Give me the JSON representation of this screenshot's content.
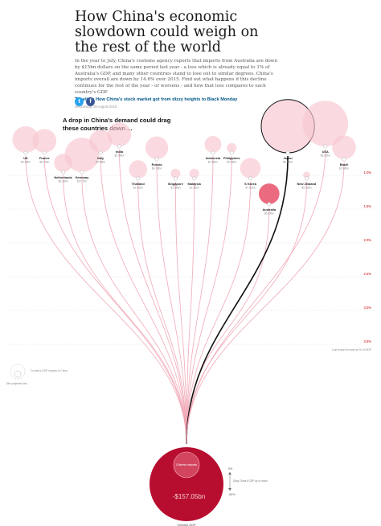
{
  "article": {
    "title": "How China's economic slowdown could weigh on the rest of the world",
    "standfirst": "In the year to July, China's customs agency reports that imports from Australia are down by $15bn dollars on the same period last year - a loss which is already equal to 1% of Australia's GDP, and many other countries stand to lose out to similar degrees. China's imports overall are down by 14.6% over 2015. Find out what happens if this decline continues for the rest of the year - or worsens - and how that loss compares to each country's GDP",
    "timeline_link": "Timeline: How China's stock market got from dizzy heights to Black Monday",
    "dateline": "Wednesday 26 August 2015",
    "social": {
      "twitter": "t",
      "facebook": "f"
    }
  },
  "chart_data": {
    "type": "flow-bubble",
    "headline": "A drop in China's demand could drag these countries down ...",
    "colors": {
      "bubble_fill": "#f7c6cf",
      "bubble_fill_strong": "#e8506a",
      "china_fill": "#b70d2e",
      "highlight_line": "#111111",
      "flow_line": "#f0a4b3",
      "scale_label": "#c70000"
    },
    "highlight": "Japan",
    "countries": [
      {
        "name": "UK",
        "value": "$5.98bn",
        "loss_pct": 0.2,
        "bubble": 1.5
      },
      {
        "name": "France",
        "value": "$5.14bn",
        "loss_pct": 0.2,
        "bubble": 1.2
      },
      {
        "name": "Netherlands",
        "value": "$3.78bn",
        "loss_pct": 0.5,
        "bubble": 0.7
      },
      {
        "name": "Germany",
        "value": "$17.7bn",
        "loss_pct": 0.5,
        "bubble": 2.5
      },
      {
        "name": "Italy",
        "value": "$3.58bn",
        "loss_pct": 0.2,
        "bubble": 1.1
      },
      {
        "name": "India",
        "value": "$2.98bn",
        "loss_pct": 0.1,
        "bubble": 1.2
      },
      {
        "name": "Thailand",
        "value": "$2.92bn",
        "loss_pct": 0.6,
        "bubble": 0.7
      },
      {
        "name": "Russia",
        "value": "$4.78bn",
        "loss_pct": 0.3,
        "bubble": 1.1
      },
      {
        "name": "Singapore",
        "value": "$1.98bn",
        "loss_pct": 0.6,
        "bubble": 0.2
      },
      {
        "name": "Malaysia",
        "value": "$1.98bn",
        "loss_pct": 0.6,
        "bubble": 0.2
      },
      {
        "name": "Indonesia",
        "value": "$1.68bn",
        "loss_pct": 0.2,
        "bubble": 0.6
      },
      {
        "name": "Philippines",
        "value": "$0.68bn",
        "loss_pct": 0.2,
        "bubble": 0.2
      },
      {
        "name": "S Korea",
        "value": "$7.52bn",
        "loss_pct": 0.6,
        "bubble": 0.9
      },
      {
        "name": "Australia",
        "value": "$6.93bn",
        "loss_pct": 1.0,
        "bubble": 0.9
      },
      {
        "name": "Japan",
        "value": "$8.73bn",
        "loss_pct": 0.2,
        "bubble": 6.0
      },
      {
        "name": "New Zealand",
        "value": "$0.93bn",
        "loss_pct": 0.6,
        "bubble": 0.1
      },
      {
        "name": "USA",
        "value": "$6.03bn",
        "loss_pct": 0.1,
        "bubble": 4.4
      },
      {
        "name": "Brazil",
        "value": "$2.48bn",
        "loss_pct": 0.3,
        "bubble": 1.2
      }
    ],
    "scale": {
      "ticks": [
        "1.0%",
        "1.5%",
        "2.0%",
        "2.5%",
        "3.0%",
        "3.5%"
      ],
      "note": "Lost export income as % of GDP"
    },
    "legend": {
      "label": "Country's GDP, exports to China",
      "sub": "$bn projected loss"
    },
    "china": {
      "inner_label": "Chinese imports",
      "value": "-$157.05bn",
      "footer": "Chinese GDP"
    },
    "side_control": {
      "top": "0%",
      "mid": "Drag China's GDP up or down",
      "bottom": "-50%"
    }
  }
}
